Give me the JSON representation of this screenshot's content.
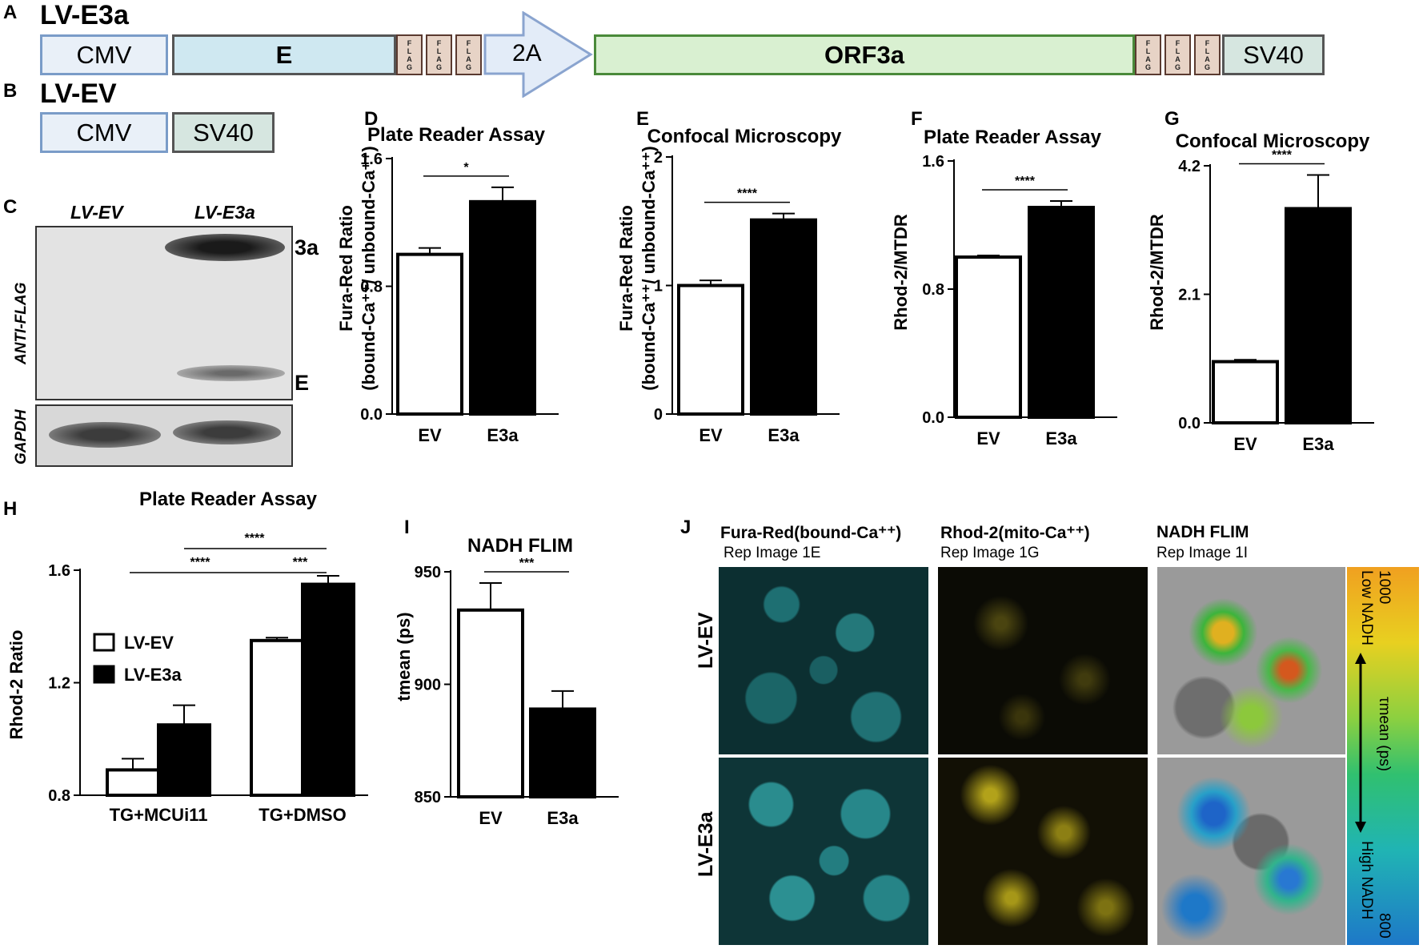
{
  "panel_letters": {
    "A": "A",
    "B": "B",
    "C": "C",
    "D": "D",
    "E": "E",
    "F": "F",
    "G": "G",
    "H": "H",
    "I": "I",
    "J": "J"
  },
  "panelA": {
    "title": "LV-E3a",
    "boxes": {
      "cmv": "CMV",
      "e": "E",
      "arrow": "2A",
      "orf": "ORF3a",
      "sv40": "SV40"
    },
    "flag_letters": [
      "F",
      "L",
      "A",
      "G"
    ]
  },
  "panelB": {
    "title": "LV-EV",
    "cmv": "CMV",
    "sv40": "SV40"
  },
  "panelC": {
    "lanes": [
      "LV-EV",
      "LV-E3a"
    ],
    "blot_label": "ANTI-FLAG",
    "loading_label": "GAPDH",
    "band_3a": "3a",
    "band_E": "E"
  },
  "colors": {
    "open_bar": "#ffffff",
    "filled_bar": "#000000",
    "cyan": "#1fa6a6",
    "yellow": "#d8c81a"
  },
  "chart_data": [
    {
      "id": "D",
      "type": "bar",
      "title": "Plate Reader Assay",
      "ylabel_main": "Fura-Red Ratio",
      "ylabel_sub": "(bound-Ca⁺⁺/ unbound-Ca⁺⁺)",
      "categories": [
        "EV",
        "E3a"
      ],
      "values": [
        1.0,
        1.33
      ],
      "errors": [
        0.04,
        0.09
      ],
      "ylim": [
        0,
        1.6
      ],
      "ticks": [
        "0.0",
        "0.8",
        "1.6"
      ],
      "tick_values": [
        0,
        0.8,
        1.6
      ],
      "sig": "*"
    },
    {
      "id": "E",
      "type": "bar",
      "title": "Confocal Microscopy",
      "ylabel_main": "Fura-Red Ratio",
      "ylabel_sub": "(bound-Ca⁺⁺/ unbound-Ca⁺⁺)",
      "categories": [
        "EV",
        "E3a"
      ],
      "values": [
        1.0,
        1.51
      ],
      "errors": [
        0.04,
        0.05
      ],
      "ylim": [
        0,
        2
      ],
      "ticks": [
        "0",
        "1",
        "2"
      ],
      "tick_values": [
        0,
        1,
        2
      ],
      "sig": "****"
    },
    {
      "id": "F",
      "type": "bar",
      "title": "Plate Reader Assay",
      "ylabel_main": "Rhod-2/MTDR",
      "ylabel_sub": "",
      "categories": [
        "EV",
        "E3a"
      ],
      "values": [
        1.0,
        1.31
      ],
      "errors": [
        0.01,
        0.04
      ],
      "ylim": [
        0,
        1.6
      ],
      "ticks": [
        "0.0",
        "0.8",
        "1.6"
      ],
      "tick_values": [
        0,
        0.8,
        1.6
      ],
      "sig": "****"
    },
    {
      "id": "G",
      "type": "bar",
      "title": "Confocal Microscopy",
      "ylabel_main": "Rhod-2/MTDR",
      "ylabel_sub": "",
      "categories": [
        "EV",
        "E3a"
      ],
      "values": [
        1.0,
        3.5
      ],
      "errors": [
        0.03,
        0.55
      ],
      "ylim": [
        0,
        4.2
      ],
      "ticks": [
        "0.0",
        "2.1",
        "4.2"
      ],
      "tick_values": [
        0,
        2.1,
        4.2
      ],
      "sig": "****"
    },
    {
      "id": "H",
      "type": "bar",
      "title": "Plate Reader Assay",
      "ylabel_main": "Rhod-2 Ratio",
      "categories": [
        "TG+MCUi11",
        "TG+DMSO"
      ],
      "series": [
        {
          "name": "LV-EV",
          "values": [
            0.89,
            1.35
          ],
          "errors": [
            0.04,
            0.01
          ]
        },
        {
          "name": "LV-E3a",
          "values": [
            1.05,
            1.55
          ],
          "errors": [
            0.07,
            0.03
          ]
        }
      ],
      "ylim": [
        0.8,
        1.6
      ],
      "ticks": [
        "0.8",
        "1.2",
        "1.6"
      ],
      "tick_values": [
        0.8,
        1.2,
        1.6
      ],
      "sig_top": "****",
      "sig_left": "****",
      "sig_right": "***",
      "legend_position": "left"
    },
    {
      "id": "I",
      "type": "bar",
      "title": "NADH FLIM",
      "ylabel_main": "tmean (ps)",
      "categories": [
        "EV",
        "E3a"
      ],
      "values": [
        933,
        889
      ],
      "errors": [
        12,
        8
      ],
      "ylim": [
        850,
        950
      ],
      "ticks": [
        "850",
        "900",
        "950"
      ],
      "tick_values": [
        850,
        900,
        950
      ],
      "sig": "***"
    }
  ],
  "panelJ": {
    "columns": [
      {
        "head": "Fura-Red(bound-Ca⁺⁺)",
        "sub": "Rep Image 1E"
      },
      {
        "head": "Rhod-2(mito-Ca⁺⁺)",
        "sub": "Rep Image 1G"
      },
      {
        "head": "NADH FLIM",
        "sub": "Rep Image 1I"
      }
    ],
    "rows": [
      "LV-EV",
      "LV-E3a"
    ],
    "scale": {
      "top": "1000",
      "bottom": "800",
      "low": "Low NADH",
      "high": "High NADH",
      "mid": "τmean (ps)"
    }
  }
}
